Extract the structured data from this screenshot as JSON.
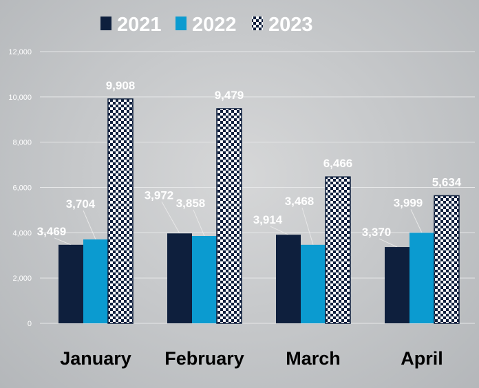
{
  "chart_data": {
    "type": "bar",
    "title": "",
    "xlabel": "",
    "ylabel": "",
    "categories": [
      "January",
      "February",
      "March",
      "April"
    ],
    "series": [
      {
        "name": "2021",
        "color": "#0e1f3d",
        "pattern": "solid",
        "values": [
          3469,
          3972,
          3914,
          3370
        ]
      },
      {
        "name": "2022",
        "color": "#0b9bd0",
        "pattern": "solid",
        "values": [
          3704,
          3858,
          3468,
          3999
        ]
      },
      {
        "name": "2023",
        "color": "#0e1f3d",
        "pattern": "checkerboard",
        "values": [
          9908,
          9479,
          6466,
          5634
        ]
      }
    ],
    "data_labels": [
      [
        "3,469",
        "3,972",
        "3,914",
        "3,370"
      ],
      [
        "3,704",
        "3,858",
        "3,468",
        "3,999"
      ],
      [
        "9,908",
        "9,479",
        "6,466",
        "5,634"
      ]
    ],
    "ylim": [
      0,
      12000
    ],
    "yticks": [
      0,
      2000,
      4000,
      6000,
      8000,
      10000,
      12000
    ],
    "ytick_labels": [
      "0",
      "2,000",
      "4,000",
      "6,000",
      "8,000",
      "10,000",
      "12,000"
    ],
    "grid": true,
    "legend_position": "top-center"
  }
}
